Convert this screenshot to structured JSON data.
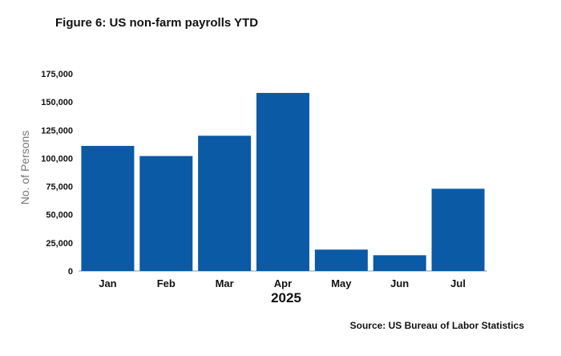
{
  "chart_data": {
    "type": "bar",
    "title": "Figure 6: US non-farm payrolls YTD",
    "categories": [
      "Jan",
      "Feb",
      "Mar",
      "Apr",
      "May",
      "Jun",
      "Jul"
    ],
    "values": [
      111000,
      102000,
      120000,
      158000,
      19000,
      14000,
      73000
    ],
    "xlabel": "2025",
    "ylabel": "No. of Persons",
    "ylim": [
      0,
      175000
    ],
    "yticks": [
      "0",
      "25,000",
      "50,000",
      "75,000",
      "100,000",
      "125,000",
      "150,000",
      "175,000"
    ],
    "grid": false,
    "bar_color": "#0a5aa5",
    "source": "Source: US Bureau of Labor Statistics"
  }
}
